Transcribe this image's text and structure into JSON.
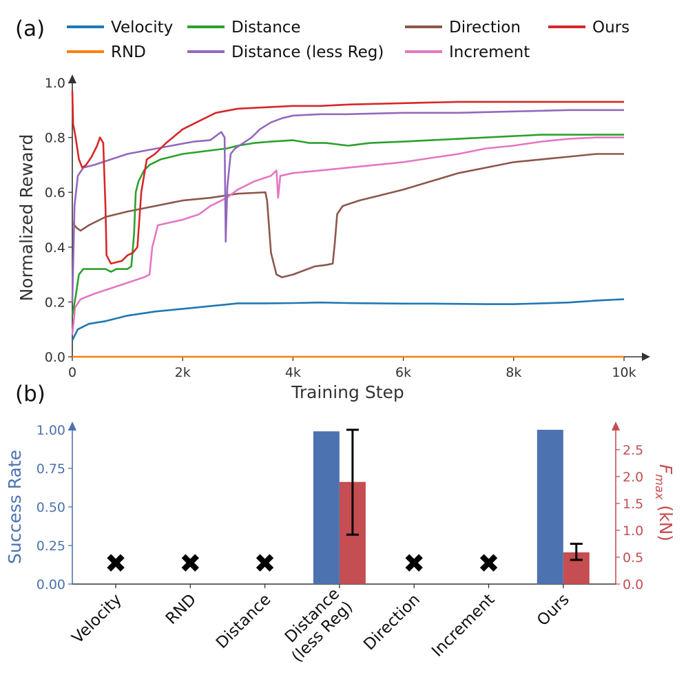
{
  "chart_data": [
    {
      "panel_label": "(a)",
      "type": "line",
      "xlabel": "Training Step",
      "ylabel": "Normalized Reward",
      "xlim": [
        0,
        10000
      ],
      "ylim": [
        0,
        1.0
      ],
      "xticks": [
        0,
        2000,
        4000,
        6000,
        8000,
        10000
      ],
      "xtick_labels": [
        "0",
        "2k",
        "4k",
        "6k",
        "8k",
        "10k"
      ],
      "yticks": [
        0.0,
        0.2,
        0.4,
        0.6,
        0.8,
        1.0
      ],
      "ytick_labels": [
        "0.0",
        "0.2",
        "0.4",
        "0.6",
        "0.8",
        "1.0"
      ],
      "legend_placement": "top",
      "series": [
        {
          "name": "Velocity",
          "color": "#1f77b4",
          "points": [
            [
              0,
              0.06
            ],
            [
              100,
              0.1
            ],
            [
              300,
              0.12
            ],
            [
              600,
              0.13
            ],
            [
              1000,
              0.15
            ],
            [
              1500,
              0.165
            ],
            [
              2000,
              0.175
            ],
            [
              2500,
              0.185
            ],
            [
              3000,
              0.195
            ],
            [
              3500,
              0.195
            ],
            [
              4000,
              0.196
            ],
            [
              4500,
              0.198
            ],
            [
              5000,
              0.196
            ],
            [
              5500,
              0.195
            ],
            [
              6000,
              0.194
            ],
            [
              6500,
              0.194
            ],
            [
              7000,
              0.193
            ],
            [
              7500,
              0.192
            ],
            [
              8000,
              0.192
            ],
            [
              8500,
              0.195
            ],
            [
              9000,
              0.198
            ],
            [
              9500,
              0.205
            ],
            [
              10000,
              0.21
            ]
          ]
        },
        {
          "name": "RND",
          "color": "#ff7f0e",
          "points": [
            [
              0,
              0.0
            ],
            [
              1000,
              0.0
            ],
            [
              2000,
              0.0
            ],
            [
              3000,
              0.0
            ],
            [
              4000,
              0.0
            ],
            [
              5000,
              0.0
            ],
            [
              6000,
              0.0
            ],
            [
              7000,
              0.0
            ],
            [
              8000,
              0.0
            ],
            [
              9000,
              0.0
            ],
            [
              10000,
              0.0
            ]
          ]
        },
        {
          "name": "Distance",
          "color": "#2ca02c",
          "points": [
            [
              0,
              0.15
            ],
            [
              60,
              0.22
            ],
            [
              120,
              0.3
            ],
            [
              200,
              0.32
            ],
            [
              400,
              0.32
            ],
            [
              600,
              0.32
            ],
            [
              700,
              0.31
            ],
            [
              800,
              0.32
            ],
            [
              1000,
              0.32
            ],
            [
              1070,
              0.33
            ],
            [
              1120,
              0.45
            ],
            [
              1150,
              0.6
            ],
            [
              1200,
              0.64
            ],
            [
              1300,
              0.68
            ],
            [
              1400,
              0.7
            ],
            [
              1600,
              0.72
            ],
            [
              1800,
              0.73
            ],
            [
              2000,
              0.74
            ],
            [
              2400,
              0.75
            ],
            [
              2800,
              0.76
            ],
            [
              3000,
              0.77
            ],
            [
              3300,
              0.78
            ],
            [
              3600,
              0.785
            ],
            [
              4000,
              0.79
            ],
            [
              4300,
              0.78
            ],
            [
              4600,
              0.78
            ],
            [
              5000,
              0.77
            ],
            [
              5400,
              0.78
            ],
            [
              6000,
              0.785
            ],
            [
              6500,
              0.79
            ],
            [
              7000,
              0.795
            ],
            [
              7500,
              0.8
            ],
            [
              8000,
              0.805
            ],
            [
              8500,
              0.81
            ],
            [
              9000,
              0.81
            ],
            [
              9500,
              0.81
            ],
            [
              10000,
              0.81
            ]
          ]
        },
        {
          "name": "Distance (less Reg)",
          "color": "#9467bd",
          "points": [
            [
              0,
              0.2
            ],
            [
              40,
              0.55
            ],
            [
              100,
              0.66
            ],
            [
              200,
              0.69
            ],
            [
              400,
              0.7
            ],
            [
              700,
              0.72
            ],
            [
              1000,
              0.74
            ],
            [
              1400,
              0.755
            ],
            [
              1800,
              0.77
            ],
            [
              2200,
              0.785
            ],
            [
              2500,
              0.79
            ],
            [
              2700,
              0.82
            ],
            [
              2760,
              0.8
            ],
            [
              2780,
              0.42
            ],
            [
              2810,
              0.62
            ],
            [
              2870,
              0.74
            ],
            [
              2950,
              0.76
            ],
            [
              3100,
              0.78
            ],
            [
              3250,
              0.8
            ],
            [
              3400,
              0.83
            ],
            [
              3600,
              0.855
            ],
            [
              3800,
              0.87
            ],
            [
              4000,
              0.88
            ],
            [
              4500,
              0.885
            ],
            [
              5000,
              0.885
            ],
            [
              6000,
              0.89
            ],
            [
              7000,
              0.89
            ],
            [
              8000,
              0.895
            ],
            [
              9000,
              0.9
            ],
            [
              10000,
              0.9
            ]
          ]
        },
        {
          "name": "Direction",
          "color": "#8c564b",
          "points": [
            [
              0,
              0.49
            ],
            [
              80,
              0.47
            ],
            [
              150,
              0.46
            ],
            [
              300,
              0.48
            ],
            [
              600,
              0.51
            ],
            [
              1000,
              0.53
            ],
            [
              1500,
              0.55
            ],
            [
              2000,
              0.57
            ],
            [
              2500,
              0.58
            ],
            [
              3000,
              0.595
            ],
            [
              3500,
              0.6
            ],
            [
              3530,
              0.57
            ],
            [
              3600,
              0.38
            ],
            [
              3700,
              0.3
            ],
            [
              3800,
              0.29
            ],
            [
              4000,
              0.3
            ],
            [
              4200,
              0.315
            ],
            [
              4400,
              0.33
            ],
            [
              4600,
              0.335
            ],
            [
              4720,
              0.34
            ],
            [
              4760,
              0.42
            ],
            [
              4800,
              0.52
            ],
            [
              4900,
              0.55
            ],
            [
              5200,
              0.57
            ],
            [
              5600,
              0.59
            ],
            [
              6000,
              0.61
            ],
            [
              6500,
              0.64
            ],
            [
              7000,
              0.67
            ],
            [
              7500,
              0.69
            ],
            [
              8000,
              0.71
            ],
            [
              8500,
              0.72
            ],
            [
              9000,
              0.73
            ],
            [
              9500,
              0.74
            ],
            [
              10000,
              0.74
            ]
          ]
        },
        {
          "name": "Increment",
          "color": "#e377c2",
          "points": [
            [
              0,
              0.08
            ],
            [
              50,
              0.18
            ],
            [
              150,
              0.21
            ],
            [
              400,
              0.23
            ],
            [
              700,
              0.25
            ],
            [
              1000,
              0.27
            ],
            [
              1300,
              0.29
            ],
            [
              1400,
              0.3
            ],
            [
              1450,
              0.4
            ],
            [
              1550,
              0.48
            ],
            [
              2000,
              0.5
            ],
            [
              2300,
              0.52
            ],
            [
              2500,
              0.55
            ],
            [
              2800,
              0.58
            ],
            [
              3000,
              0.61
            ],
            [
              3300,
              0.64
            ],
            [
              3600,
              0.66
            ],
            [
              3700,
              0.68
            ],
            [
              3730,
              0.58
            ],
            [
              3770,
              0.66
            ],
            [
              4000,
              0.67
            ],
            [
              4500,
              0.68
            ],
            [
              5000,
              0.69
            ],
            [
              5500,
              0.7
            ],
            [
              6000,
              0.71
            ],
            [
              6500,
              0.725
            ],
            [
              7000,
              0.74
            ],
            [
              7500,
              0.76
            ],
            [
              8000,
              0.77
            ],
            [
              8500,
              0.785
            ],
            [
              9000,
              0.795
            ],
            [
              9500,
              0.8
            ],
            [
              10000,
              0.8
            ]
          ]
        },
        {
          "name": "Ours",
          "color": "#d62728",
          "points": [
            [
              0,
              0.97
            ],
            [
              15,
              0.85
            ],
            [
              60,
              0.8
            ],
            [
              120,
              0.72
            ],
            [
              180,
              0.69
            ],
            [
              250,
              0.7
            ],
            [
              350,
              0.73
            ],
            [
              450,
              0.77
            ],
            [
              500,
              0.8
            ],
            [
              560,
              0.78
            ],
            [
              600,
              0.55
            ],
            [
              620,
              0.37
            ],
            [
              700,
              0.34
            ],
            [
              900,
              0.35
            ],
            [
              1000,
              0.37
            ],
            [
              1100,
              0.38
            ],
            [
              1180,
              0.4
            ],
            [
              1250,
              0.6
            ],
            [
              1350,
              0.72
            ],
            [
              1500,
              0.74
            ],
            [
              1700,
              0.78
            ],
            [
              2000,
              0.83
            ],
            [
              2300,
              0.86
            ],
            [
              2600,
              0.89
            ],
            [
              3000,
              0.905
            ],
            [
              3500,
              0.91
            ],
            [
              4000,
              0.915
            ],
            [
              4500,
              0.915
            ],
            [
              5000,
              0.92
            ],
            [
              6000,
              0.925
            ],
            [
              7000,
              0.93
            ],
            [
              8000,
              0.93
            ],
            [
              9000,
              0.93
            ],
            [
              10000,
              0.93
            ]
          ]
        }
      ]
    },
    {
      "panel_label": "(b)",
      "type": "bar",
      "categories": [
        "Velocity",
        "RND",
        "Distance",
        "Distance (less Reg)",
        "Direction",
        "Increment",
        "Ours"
      ],
      "category_lines": [
        [
          "Velocity"
        ],
        [
          "RND"
        ],
        [
          "Distance"
        ],
        [
          "Distance",
          "(less Reg)"
        ],
        [
          "Direction"
        ],
        [
          "Increment"
        ],
        [
          "Ours"
        ]
      ],
      "ylabel_left": "Success Rate",
      "ylabel_right_main": "F",
      "ylabel_right_sub": "max",
      "ylabel_right_unit": "(kN)",
      "ylim_left": [
        0,
        1.0
      ],
      "ylim_right": [
        0,
        2.87
      ],
      "yticks_left": [
        0.0,
        0.25,
        0.5,
        0.75,
        1.0
      ],
      "yticks_left_labels": [
        "0.00",
        "0.25",
        "0.50",
        "0.75",
        "1.00"
      ],
      "yticks_right": [
        0.0,
        0.5,
        1.0,
        1.5,
        2.0,
        2.5
      ],
      "yticks_right_labels": [
        "0.0",
        "0.5",
        "1.0",
        "1.5",
        "2.0",
        "2.5"
      ],
      "left_color": "#4c72b0",
      "right_color": "#c44e52",
      "failure_marker": "✖",
      "series": [
        {
          "name": "Success Rate",
          "axis": "left",
          "values": [
            null,
            null,
            null,
            0.99,
            null,
            null,
            1.0
          ]
        },
        {
          "name": "F_max (kN)",
          "axis": "right",
          "values": [
            null,
            null,
            null,
            1.9,
            null,
            null,
            0.59
          ],
          "err_low": [
            null,
            null,
            null,
            0.92,
            null,
            null,
            0.45
          ],
          "err_high": [
            null,
            null,
            null,
            2.87,
            null,
            null,
            0.75
          ]
        }
      ],
      "failed": [
        true,
        true,
        true,
        false,
        true,
        true,
        false
      ]
    }
  ]
}
